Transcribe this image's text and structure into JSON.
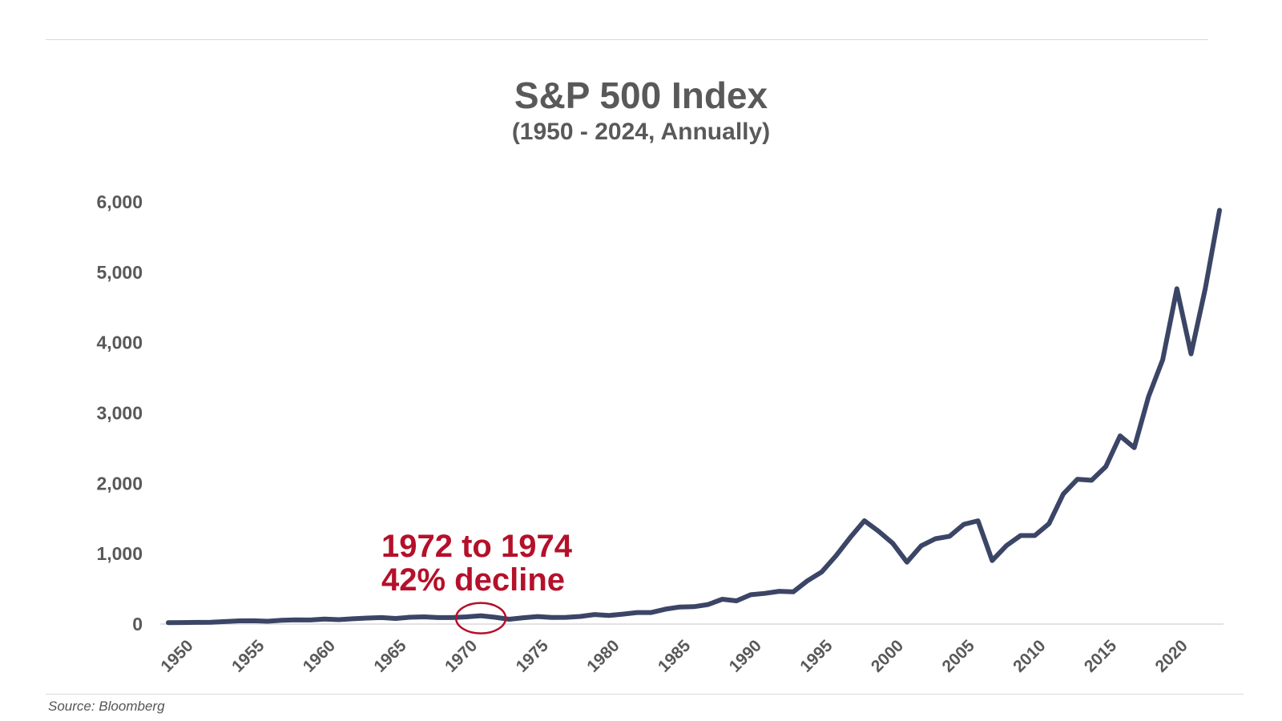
{
  "chart_data": {
    "type": "line",
    "title": "S&P 500 Index",
    "subtitle": "(1950 - 2024, Annually)",
    "xlabel": "",
    "ylabel": "",
    "ylim": [
      0,
      6000
    ],
    "xlim": [
      1950,
      2024
    ],
    "y_ticks": [
      0,
      1000,
      2000,
      3000,
      4000,
      5000,
      6000
    ],
    "y_tick_labels": [
      "0",
      "1,000",
      "2,000",
      "3,000",
      "4,000",
      "5,000",
      "6,000"
    ],
    "x_ticks": [
      1950,
      1955,
      1960,
      1965,
      1970,
      1975,
      1980,
      1985,
      1990,
      1995,
      2000,
      2005,
      2010,
      2015,
      2020
    ],
    "x_tick_labels": [
      "1950",
      "1955",
      "1960",
      "1965",
      "1970",
      "1975",
      "1980",
      "1985",
      "1990",
      "1995",
      "2000",
      "2005",
      "2010",
      "2015",
      "2020"
    ],
    "grid": false,
    "series": [
      {
        "color": "#3b4566",
        "x": [
          1950,
          1951,
          1952,
          1953,
          1954,
          1955,
          1956,
          1957,
          1958,
          1959,
          1960,
          1961,
          1962,
          1963,
          1964,
          1965,
          1966,
          1967,
          1968,
          1969,
          1970,
          1971,
          1972,
          1973,
          1974,
          1975,
          1976,
          1977,
          1978,
          1979,
          1980,
          1981,
          1982,
          1983,
          1984,
          1985,
          1986,
          1987,
          1988,
          1989,
          1990,
          1991,
          1992,
          1993,
          1994,
          1995,
          1996,
          1997,
          1998,
          1999,
          2000,
          2001,
          2002,
          2003,
          2004,
          2005,
          2006,
          2007,
          2008,
          2009,
          2010,
          2011,
          2012,
          2013,
          2014,
          2015,
          2016,
          2017,
          2018,
          2019,
          2020,
          2021,
          2022,
          2023,
          2024
        ],
        "values": [
          20,
          22,
          24,
          25,
          35,
          45,
          47,
          40,
          55,
          60,
          58,
          72,
          63,
          75,
          85,
          92,
          80,
          97,
          103,
          92,
          92,
          102,
          118,
          97,
          68,
          90,
          107,
          95,
          96,
          108,
          136,
          122,
          141,
          164,
          164,
          212,
          242,
          247,
          278,
          353,
          330,
          417,
          436,
          466,
          459,
          616,
          741,
          970,
          1229,
          1469,
          1320,
          1148,
          880,
          1112,
          1212,
          1248,
          1418,
          1468,
          903,
          1115,
          1258,
          1258,
          1426,
          1848,
          2059,
          2044,
          2239,
          2674,
          2507,
          3231,
          3756,
          4766,
          3840,
          4770,
          5880
        ]
      }
    ],
    "annotation": {
      "line1": "1972 to 1974",
      "line2": "42% decline",
      "circle_at_year": 1972,
      "color": "#b5102a"
    },
    "source": "Source: Bloomberg"
  }
}
